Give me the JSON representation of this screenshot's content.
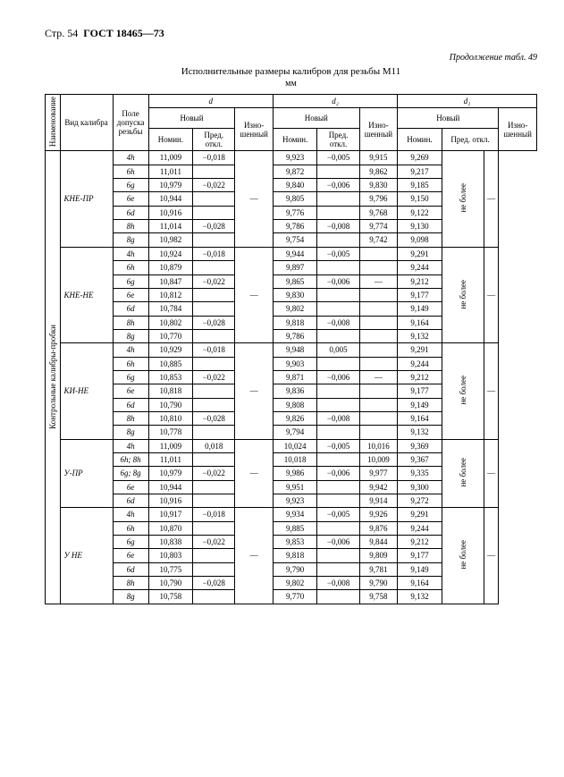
{
  "page_header": {
    "page": "Стр. 54",
    "std": "ГОСТ 18465—73"
  },
  "continuation": "Продолжение табл. 49",
  "title": "Исполнительные размеры калибров для резьбы М11",
  "unit": "мм",
  "head": {
    "naim": "Наименование",
    "vid": "Вид калибра",
    "pole": "Поле допуска резьбы",
    "new": "Новый",
    "nomin": "Номин.",
    "pred": "Пред. откл.",
    "izn": "Изно-\nшенный",
    "neb": "не более",
    "d": "d",
    "d2": "d₂",
    "d1": "d₁"
  },
  "side_label": "Контрольные калибры-пробки",
  "groups": [
    {
      "name": "КНЕ-ПР",
      "rows": [
        {
          "p": "4h",
          "dN": "11,009",
          "dP": "−0,018",
          "d2N": "9,923",
          "d2P": "−0,005",
          "d2I": "9,915",
          "d1N": "9,269"
        },
        {
          "p": "6h",
          "dN": "11,011",
          "dP": "",
          "d2N": "9,872",
          "d2P": "",
          "d2I": "9,862",
          "d1N": "9,217"
        },
        {
          "p": "6g",
          "dN": "10,979",
          "dP": "−0,022",
          "d2N": "9,840",
          "d2P": "−0,006",
          "d2I": "9,830",
          "d1N": "9,185"
        },
        {
          "p": "6e",
          "dN": "10,944",
          "dP": "",
          "d2N": "9,805",
          "d2P": "",
          "d2I": "9,796",
          "d1N": "9,150"
        },
        {
          "p": "6d",
          "dN": "10,916",
          "dP": "",
          "d2N": "9,776",
          "d2P": "",
          "d2I": "9,768",
          "d1N": "9,122"
        },
        {
          "p": "8h",
          "dN": "11,014",
          "dP": "−0,028",
          "d2N": "9,786",
          "d2P": "−0,008",
          "d2I": "9,774",
          "d1N": "9,130"
        },
        {
          "p": "8g",
          "dN": "10,982",
          "dP": "",
          "d2N": "9,754",
          "d2P": "",
          "d2I": "9,742",
          "d1N": "9,098"
        }
      ]
    },
    {
      "name": "КНЕ-НЕ",
      "rows": [
        {
          "p": "4h",
          "dN": "10,924",
          "dP": "−0,018",
          "d2N": "9,944",
          "d2P": "−0,005",
          "d2I": "",
          "d1N": "9,291"
        },
        {
          "p": "6h",
          "dN": "10,879",
          "dP": "",
          "d2N": "9,897",
          "d2P": "",
          "d2I": "",
          "d1N": "9,244"
        },
        {
          "p": "6g",
          "dN": "10,847",
          "dP": "−0,022",
          "d2N": "9,865",
          "d2P": "−0,006",
          "d2I": "—",
          "d1N": "9,212"
        },
        {
          "p": "6e",
          "dN": "10,812",
          "dP": "",
          "d2N": "9,830",
          "d2P": "",
          "d2I": "",
          "d1N": "9,177"
        },
        {
          "p": "6d",
          "dN": "10,784",
          "dP": "",
          "d2N": "9,802",
          "d2P": "",
          "d2I": "",
          "d1N": "9,149"
        },
        {
          "p": "8h",
          "dN": "10,802",
          "dP": "−0,028",
          "d2N": "9,818",
          "d2P": "−0,008",
          "d2I": "",
          "d1N": "9,164"
        },
        {
          "p": "8g",
          "dN": "10,770",
          "dP": "",
          "d2N": "9,786",
          "d2P": "",
          "d2I": "",
          "d1N": "9,132"
        }
      ]
    },
    {
      "name": "КИ-НЕ",
      "rows": [
        {
          "p": "4h",
          "dN": "10,929",
          "dP": "−0,018",
          "d2N": "9,948",
          "d2P": "0,005",
          "d2I": "",
          "d1N": "9,291"
        },
        {
          "p": "6h",
          "dN": "10,885",
          "dP": "",
          "d2N": "9,903",
          "d2P": "",
          "d2I": "",
          "d1N": "9,244"
        },
        {
          "p": "6g",
          "dN": "10,853",
          "dP": "−0,022",
          "d2N": "9,871",
          "d2P": "−0,006",
          "d2I": "—",
          "d1N": "9,212"
        },
        {
          "p": "6e",
          "dN": "10,818",
          "dP": "",
          "d2N": "9,836",
          "d2P": "",
          "d2I": "",
          "d1N": "9,177"
        },
        {
          "p": "6d",
          "dN": "10,790",
          "dP": "",
          "d2N": "9,808",
          "d2P": "",
          "d2I": "",
          "d1N": "9,149"
        },
        {
          "p": "8h",
          "dN": "10,810",
          "dP": "−0,028",
          "d2N": "9,826",
          "d2P": "−0,008",
          "d2I": "",
          "d1N": "9,164"
        },
        {
          "p": "8g",
          "dN": "10,778",
          "dP": "",
          "d2N": "9,794",
          "d2P": "",
          "d2I": "",
          "d1N": "9,132"
        }
      ]
    },
    {
      "name": "У-ПР",
      "rows": [
        {
          "p": "4h",
          "dN": "11,009",
          "dP": "0,018",
          "d2N": "10,024",
          "d2P": "−0,005",
          "d2I": "10,016",
          "d1N": "9,369"
        },
        {
          "p": "6h; 8h",
          "dN": "11,011",
          "dP": "",
          "d2N": "10,018",
          "d2P": "",
          "d2I": "10,009",
          "d1N": "9,367"
        },
        {
          "p": "6g; 8g",
          "dN": "10,979",
          "dP": "−0,022",
          "d2N": "9,986",
          "d2P": "−0,006",
          "d2I": "9,977",
          "d1N": "9,335"
        },
        {
          "p": "6e",
          "dN": "10,944",
          "dP": "",
          "d2N": "9,951",
          "d2P": "",
          "d2I": "9,942",
          "d1N": "9,300"
        },
        {
          "p": "6d",
          "dN": "10,916",
          "dP": "",
          "d2N": "9,923",
          "d2P": "",
          "d2I": "9,914",
          "d1N": "9,272"
        }
      ]
    },
    {
      "name": "У НЕ",
      "rows": [
        {
          "p": "4h",
          "dN": "10,917",
          "dP": "−0,018",
          "d2N": "9,934",
          "d2P": "−0,005",
          "d2I": "9,926",
          "d1N": "9,291"
        },
        {
          "p": "6h",
          "dN": "10,870",
          "dP": "",
          "d2N": "9,885",
          "d2P": "",
          "d2I": "9,876",
          "d1N": "9,244"
        },
        {
          "p": "6g",
          "dN": "10,838",
          "dP": "−0,022",
          "d2N": "9,853",
          "d2P": "−0,006",
          "d2I": "9,844",
          "d1N": "9,212"
        },
        {
          "p": "6e",
          "dN": "10,803",
          "dP": "",
          "d2N": "9,818",
          "d2P": "",
          "d2I": "9,809",
          "d1N": "9,177"
        },
        {
          "p": "6d",
          "dN": "10,775",
          "dP": "",
          "d2N": "9,790",
          "d2P": "",
          "d2I": "9,781",
          "d1N": "9,149"
        },
        {
          "p": "8h",
          "dN": "10,790",
          "dP": "−0,028",
          "d2N": "9,802",
          "d2P": "−0,008",
          "d2I": "9,790",
          "d1N": "9,164"
        },
        {
          "p": "8g",
          "dN": "10,758",
          "dP": "",
          "d2N": "9,770",
          "d2P": "",
          "d2I": "9,758",
          "d1N": "9,132"
        }
      ]
    }
  ]
}
